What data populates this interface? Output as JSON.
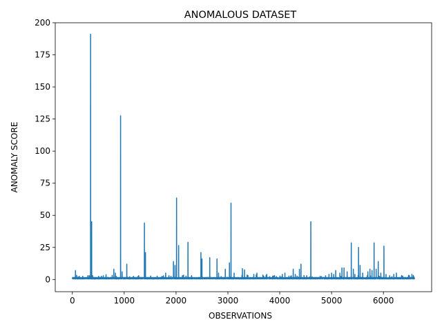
{
  "chart_data": {
    "type": "line",
    "title": "ANOMALOUS DATASET",
    "xlabel": "OBSERVATIONS",
    "ylabel": "ANOMALY SCORE",
    "xlim": [
      -330,
      6930
    ],
    "ylim": [
      -9.5,
      200
    ],
    "xticks": [
      0,
      1000,
      2000,
      3000,
      4000,
      5000,
      6000
    ],
    "yticks": [
      0,
      25,
      50,
      75,
      100,
      125,
      150,
      175,
      200
    ],
    "grid": false,
    "legend": "none",
    "series_color": "#1f77b4",
    "n_points": 6600,
    "baseline": 1.0,
    "spikes": [
      [
        60,
        7
      ],
      [
        200,
        2.5
      ],
      [
        300,
        3
      ],
      [
        352,
        191
      ],
      [
        372,
        45
      ],
      [
        390,
        3
      ],
      [
        560,
        2.5
      ],
      [
        800,
        8
      ],
      [
        830,
        5
      ],
      [
        930,
        127.5
      ],
      [
        960,
        6
      ],
      [
        1050,
        12
      ],
      [
        1180,
        2.5
      ],
      [
        1280,
        3
      ],
      [
        1390,
        44
      ],
      [
        1410,
        21
      ],
      [
        1800,
        5
      ],
      [
        1950,
        14
      ],
      [
        1980,
        11
      ],
      [
        2010,
        63.5
      ],
      [
        2050,
        26.5
      ],
      [
        2230,
        29
      ],
      [
        2300,
        3
      ],
      [
        2480,
        21
      ],
      [
        2500,
        16
      ],
      [
        2650,
        17
      ],
      [
        2790,
        16
      ],
      [
        2820,
        5
      ],
      [
        2950,
        8
      ],
      [
        3030,
        13
      ],
      [
        3060,
        59.5
      ],
      [
        3120,
        5
      ],
      [
        3280,
        8.5
      ],
      [
        3320,
        7.5
      ],
      [
        3500,
        4
      ],
      [
        3560,
        5
      ],
      [
        3750,
        4
      ],
      [
        3900,
        3
      ],
      [
        4050,
        4
      ],
      [
        4100,
        5
      ],
      [
        4260,
        8
      ],
      [
        4300,
        4
      ],
      [
        4380,
        8
      ],
      [
        4410,
        12
      ],
      [
        4520,
        3
      ],
      [
        4600,
        45
      ],
      [
        4950,
        4
      ],
      [
        5000,
        5
      ],
      [
        5040,
        4
      ],
      [
        5080,
        7
      ],
      [
        5160,
        5
      ],
      [
        5200,
        9
      ],
      [
        5240,
        9
      ],
      [
        5300,
        6
      ],
      [
        5380,
        28.5
      ],
      [
        5420,
        8
      ],
      [
        5450,
        4
      ],
      [
        5520,
        25
      ],
      [
        5550,
        11
      ],
      [
        5600,
        5
      ],
      [
        5700,
        6
      ],
      [
        5740,
        8
      ],
      [
        5780,
        7
      ],
      [
        5820,
        28.5
      ],
      [
        5860,
        8
      ],
      [
        5900,
        14
      ],
      [
        5950,
        5
      ],
      [
        6010,
        26
      ],
      [
        6050,
        4
      ],
      [
        6120,
        3
      ],
      [
        6200,
        4
      ],
      [
        6250,
        5
      ],
      [
        6350,
        3
      ],
      [
        6500,
        3
      ],
      [
        6550,
        4
      ],
      [
        6590,
        2
      ]
    ]
  }
}
